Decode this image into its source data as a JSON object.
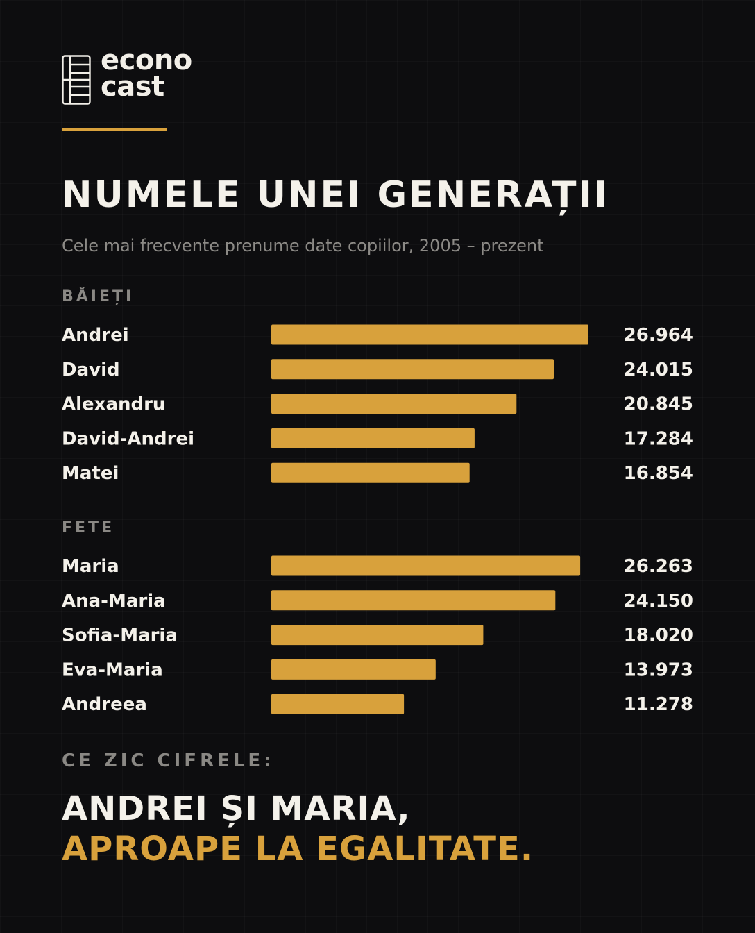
{
  "brand": {
    "line1": "econo",
    "line2": "cast"
  },
  "title": "NUMELE UNEI GENERAȚII",
  "subtitle": "Cele mai frecvente prenume date copiilor, 2005 – prezent",
  "colors": {
    "background": "#0d0d0f",
    "bar": "#d8a13c",
    "accent": "#d8a13c",
    "text": "#f4f1ea",
    "muted": "#8a8884"
  },
  "chart_data": [
    {
      "type": "bar",
      "orientation": "horizontal",
      "title": "BĂIEȚI",
      "categories": [
        "Andrei",
        "David",
        "Alexandru",
        "David-Andrei",
        "Matei"
      ],
      "values": [
        26964,
        24015,
        20845,
        17284,
        16854
      ],
      "value_labels": [
        "26.964",
        "24.015",
        "20.845",
        "17.284",
        "16.854"
      ],
      "grid": false
    },
    {
      "type": "bar",
      "orientation": "horizontal",
      "title": "FETE",
      "categories": [
        "Maria",
        "Ana-Maria",
        "Sofia-Maria",
        "Eva-Maria",
        "Andreea"
      ],
      "values": [
        26263,
        24150,
        18020,
        13973,
        11278
      ],
      "value_labels": [
        "26.263",
        "24.150",
        "18.020",
        "13.973",
        "11.278"
      ],
      "grid": false
    }
  ],
  "footer": {
    "label": "CE ZIC CIFRELE:",
    "headline_line1": "ANDREI ȘI MARIA,",
    "headline_line2": "APROAPE LA EGALITATE."
  }
}
